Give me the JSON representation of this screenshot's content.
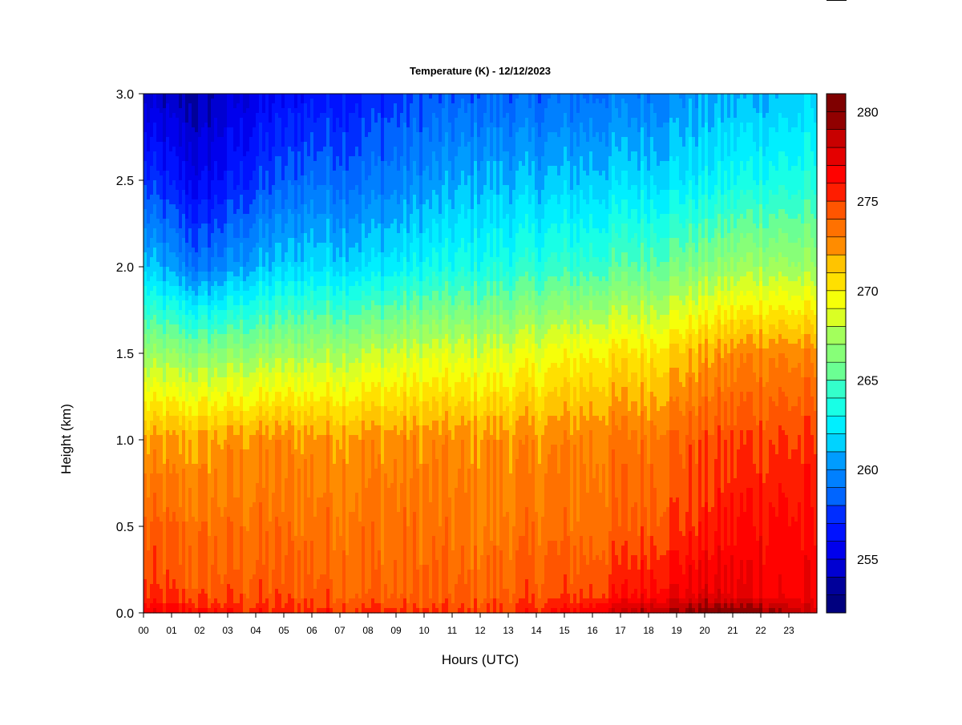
{
  "chart_data": {
    "type": "heatmap",
    "title": "Temperature (K) - 12/12/2023",
    "xlabel": "Hours (UTC)",
    "ylabel": "Height (km)",
    "x_ticks": [
      "00",
      "01",
      "02",
      "03",
      "04",
      "05",
      "06",
      "07",
      "08",
      "09",
      "10",
      "11",
      "12",
      "13",
      "14",
      "15",
      "16",
      "17",
      "18",
      "19",
      "20",
      "21",
      "22",
      "23"
    ],
    "y_ticks": [
      "0.0",
      "0.5",
      "1.0",
      "1.5",
      "2.0",
      "2.5",
      "3.0"
    ],
    "xlim": [
      0,
      24
    ],
    "ylim": [
      0,
      3
    ],
    "colorbar": {
      "ticks": [
        "255",
        "260",
        "265",
        "270",
        "275",
        "280"
      ],
      "range": [
        252,
        281
      ],
      "levels": 29,
      "colors": [
        "#00007f",
        "#00009a",
        "#0000b6",
        "#0000d2",
        "#0000ed",
        "#0012ff",
        "#002dff",
        "#0049ff",
        "#0065ff",
        "#0080ff",
        "#009cff",
        "#00b8ff",
        "#00d3ff",
        "#00efff",
        "#18ffe6",
        "#34ffcb",
        "#50ffaf",
        "#6bff93",
        "#87ff78",
        "#a3ff5c",
        "#beff40",
        "#daff24",
        "#f6ff09",
        "#ffe000",
        "#ffc400",
        "#ffa800",
        "#ff8c00",
        "#ff7100",
        "#ff5500",
        "#ff3900",
        "#ff1d00",
        "#ff0200",
        "#e40000",
        "#c80000",
        "#ad0000",
        "#910000",
        "#7f0000"
      ]
    },
    "temperature_profiles_K": [
      {
        "hour": 0,
        "heights_km": [
          0,
          0.1,
          0.5,
          1.0,
          1.5,
          2.0,
          2.5,
          3.0
        ],
        "values": [
          277.0,
          275.0,
          274.0,
          272.0,
          267.0,
          261.5,
          257.5,
          254.5
        ]
      },
      {
        "hour": 2,
        "heights_km": [
          0,
          0.1,
          0.5,
          1.0,
          1.5,
          2.0,
          2.5,
          3.0
        ],
        "values": [
          276.0,
          274.5,
          273.5,
          272.0,
          266.5,
          259.0,
          255.5,
          253.5
        ]
      },
      {
        "hour": 4,
        "heights_km": [
          0,
          0.1,
          0.5,
          1.0,
          1.5,
          2.0,
          2.5,
          3.0
        ],
        "values": [
          275.5,
          274.5,
          273.5,
          272.5,
          267.0,
          261.0,
          257.5,
          255.5
        ]
      },
      {
        "hour": 6,
        "heights_km": [
          0,
          0.1,
          0.5,
          1.0,
          1.5,
          2.0,
          2.5,
          3.0
        ],
        "values": [
          275.5,
          274.5,
          273.5,
          272.5,
          267.5,
          262.0,
          259.0,
          256.5
        ]
      },
      {
        "hour": 8,
        "heights_km": [
          0,
          0.1,
          0.5,
          1.0,
          1.5,
          2.0,
          2.5,
          3.0
        ],
        "values": [
          275.5,
          274.0,
          273.5,
          272.5,
          268.0,
          262.0,
          259.0,
          257.0
        ]
      },
      {
        "hour": 10,
        "heights_km": [
          0,
          0.1,
          0.5,
          1.0,
          1.5,
          2.0,
          2.5,
          3.0
        ],
        "values": [
          275.0,
          274.0,
          273.5,
          272.5,
          268.5,
          263.0,
          260.0,
          258.0
        ]
      },
      {
        "hour": 12,
        "heights_km": [
          0,
          0.1,
          0.5,
          1.0,
          1.5,
          2.0,
          2.5,
          3.0
        ],
        "values": [
          275.0,
          274.0,
          273.0,
          272.5,
          268.5,
          263.5,
          261.0,
          258.5
        ]
      },
      {
        "hour": 14,
        "heights_km": [
          0,
          0.1,
          0.5,
          1.0,
          1.5,
          2.0,
          2.5,
          3.0
        ],
        "values": [
          275.5,
          274.5,
          273.5,
          272.5,
          269.0,
          264.0,
          261.0,
          258.5
        ]
      },
      {
        "hour": 16,
        "heights_km": [
          0,
          0.1,
          0.5,
          1.0,
          1.5,
          2.0,
          2.5,
          3.0
        ],
        "values": [
          277.0,
          275.0,
          273.5,
          273.0,
          270.0,
          264.5,
          261.5,
          259.0
        ]
      },
      {
        "hour": 18,
        "heights_km": [
          0,
          0.1,
          0.5,
          1.0,
          1.5,
          2.0,
          2.5,
          3.0
        ],
        "values": [
          279.0,
          276.5,
          274.5,
          273.5,
          270.5,
          265.5,
          262.0,
          259.5
        ]
      },
      {
        "hour": 20,
        "heights_km": [
          0,
          0.1,
          0.5,
          1.0,
          1.5,
          2.0,
          2.5,
          3.0
        ],
        "values": [
          280.0,
          277.5,
          275.5,
          274.5,
          272.0,
          266.5,
          262.5,
          260.5
        ]
      },
      {
        "hour": 22,
        "heights_km": [
          0,
          0.1,
          0.5,
          1.0,
          1.5,
          2.0,
          2.5,
          3.0
        ],
        "values": [
          280.0,
          277.0,
          276.5,
          275.0,
          273.0,
          267.5,
          263.5,
          261.0
        ]
      },
      {
        "hour": 24,
        "heights_km": [
          0,
          0.1,
          0.5,
          1.0,
          1.5,
          2.0,
          2.5,
          3.0
        ],
        "values": [
          277.5,
          276.5,
          276.0,
          275.0,
          272.5,
          267.0,
          263.5,
          261.5
        ]
      }
    ]
  }
}
